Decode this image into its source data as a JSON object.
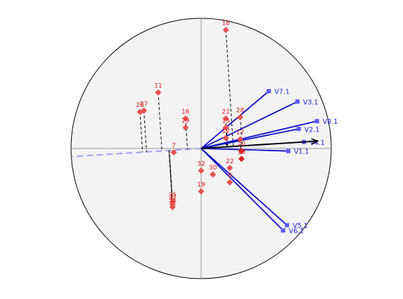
{
  "chart_data": {
    "type": "scatter",
    "title": "",
    "xlabel": "",
    "ylabel": "",
    "xlim": [
      -1,
      1
    ],
    "ylim": [
      -1,
      1
    ],
    "unit_circle": true,
    "colors": {
      "background": "#f3f3f3",
      "observation": "#e8514f",
      "observation_highlight": "#d71f1f",
      "variable": "#1010cc",
      "variable_marker": "#5a5aff",
      "highlight_arrow": "#000000",
      "dashed_projection": "#000000",
      "dashed_axis": "#9a9aee"
    },
    "variables": [
      {
        "label": "V7.1",
        "x": 0.52,
        "y": 0.44
      },
      {
        "label": "V3.1",
        "x": 0.74,
        "y": 0.36
      },
      {
        "label": "V8.1",
        "x": 0.89,
        "y": 0.21
      },
      {
        "label": "V2.1",
        "x": 0.75,
        "y": 0.15
      },
      {
        "label": "V4.1",
        "x": 0.79,
        "y": 0.05
      },
      {
        "label": "V1.1",
        "x": 0.67,
        "y": -0.02
      },
      {
        "label": "V5.1",
        "x": 0.66,
        "y": -0.59
      },
      {
        "label": "V6.1",
        "x": 0.63,
        "y": -0.63
      }
    ],
    "highlight_variable": "V4.1",
    "observations": [
      {
        "label": "18",
        "x": 0.19,
        "y": 0.91
      },
      {
        "label": "11",
        "x": -0.33,
        "y": 0.43
      },
      {
        "label": "27",
        "x": -0.44,
        "y": 0.29
      },
      {
        "label": "26",
        "x": -0.47,
        "y": 0.28
      },
      {
        "label": "16",
        "x": -0.12,
        "y": 0.23
      },
      {
        "label": "29",
        "x": -0.12,
        "y": 0.16
      },
      {
        "label": "21",
        "x": 0.19,
        "y": 0.23
      },
      {
        "label": "28",
        "x": 0.3,
        "y": 0.24
      },
      {
        "label": "15",
        "x": 0.19,
        "y": 0.16
      },
      {
        "label": "12",
        "x": 0.19,
        "y": 0.08
      },
      {
        "label": "17",
        "x": 0.3,
        "y": 0.07
      },
      {
        "label": "20",
        "x": 0.31,
        "y": -0.02
      },
      {
        "label": "10",
        "x": 0.31,
        "y": -0.08
      },
      {
        "label": "7",
        "x": -0.21,
        "y": -0.03
      },
      {
        "label": "32",
        "x": 0.0,
        "y": -0.17
      },
      {
        "label": "30",
        "x": 0.09,
        "y": -0.2
      },
      {
        "label": "22",
        "x": 0.22,
        "y": -0.15
      },
      {
        "label": "8",
        "x": 0.22,
        "y": -0.26
      },
      {
        "label": "19",
        "x": 0.0,
        "y": -0.33
      },
      {
        "label": "35",
        "x": -0.22,
        "y": -0.41
      },
      {
        "label": "37",
        "x": -0.22,
        "y": -0.43
      },
      {
        "label": "36",
        "x": -0.22,
        "y": -0.45
      }
    ],
    "highlight_observations": [
      "20",
      "10"
    ],
    "projected_observations": [
      "18",
      "11",
      "27",
      "26",
      "16",
      "21",
      "28",
      "15",
      "12",
      "17",
      "10",
      "7",
      "35",
      "37",
      "36"
    ]
  }
}
